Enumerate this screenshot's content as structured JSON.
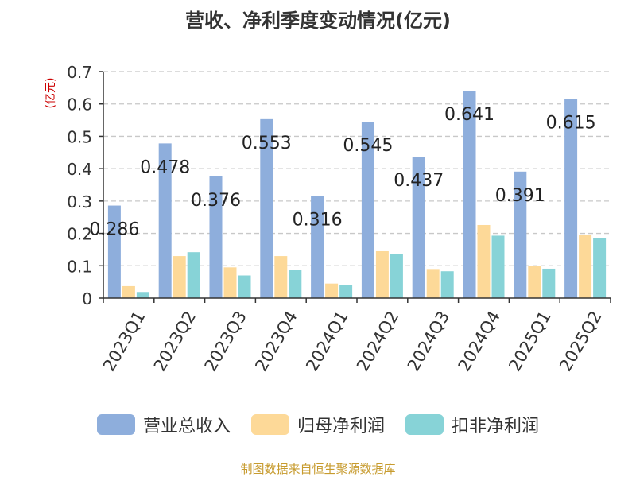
{
  "chart_data": {
    "type": "bar",
    "title": "营收、净利季度变动情况(亿元)",
    "ylabel": "(亿元)",
    "xlabel": "",
    "ylim": [
      0,
      0.7
    ],
    "yticks": [
      "0",
      "0.1",
      "0.2",
      "0.3",
      "0.4",
      "0.5",
      "0.6",
      "0.7"
    ],
    "grid": true,
    "legend_position": "bottom",
    "categories": [
      "2023Q1",
      "2023Q2",
      "2023Q3",
      "2023Q4",
      "2024Q1",
      "2024Q2",
      "2024Q3",
      "2024Q4",
      "2025Q1",
      "2025Q2"
    ],
    "series": [
      {
        "name": "营业总收入",
        "color": "#8eaedc",
        "values": [
          0.286,
          0.478,
          0.376,
          0.553,
          0.316,
          0.545,
          0.437,
          0.641,
          0.391,
          0.615
        ],
        "data_labels": [
          "0.286",
          "0.478",
          "0.376",
          "0.553",
          "0.316",
          "0.545",
          "0.437",
          "0.641",
          "0.391",
          "0.615"
        ]
      },
      {
        "name": "归母净利润",
        "color": "#fdd998",
        "values": [
          0.037,
          0.13,
          0.095,
          0.13,
          0.045,
          0.145,
          0.09,
          0.226,
          0.1,
          0.195
        ]
      },
      {
        "name": "扣非净利润",
        "color": "#87d3d7",
        "values": [
          0.019,
          0.142,
          0.07,
          0.088,
          0.041,
          0.136,
          0.083,
          0.193,
          0.091,
          0.186
        ]
      }
    ]
  },
  "source": "制图数据来自恒生聚源数据库"
}
